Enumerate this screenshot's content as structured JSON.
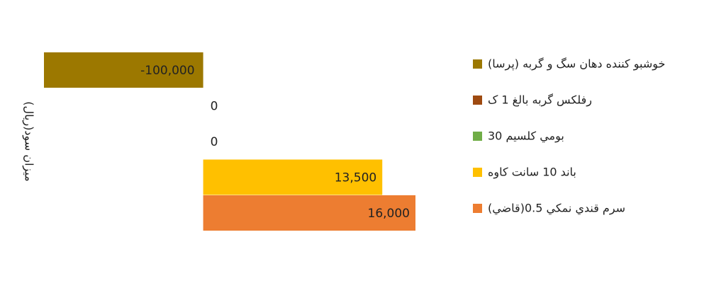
{
  "chart_data": {
    "type": "bar",
    "orientation": "horizontal",
    "y_label": "میزان سود(ریال)",
    "categories": [
      "خوشبو كننده دهان سگ و گربه (پرسا)",
      "رفلكس گربه بالغ 1 ک",
      "بومي كلسيم 30",
      "باند 10 سانت كاوه",
      "سرم قندي نمكي 0.5(قاضي)"
    ],
    "values": [
      -100000,
      0,
      0,
      13500,
      16000
    ],
    "value_labels": [
      "-100,000",
      "0",
      "0",
      "13,500",
      "16,000"
    ],
    "colors": [
      "#9c7800",
      "#9e4a10",
      "#70ad47",
      "#ffc000",
      "#ed7d31"
    ],
    "xlim": [
      -12000,
      16000
    ],
    "legend": "right"
  }
}
